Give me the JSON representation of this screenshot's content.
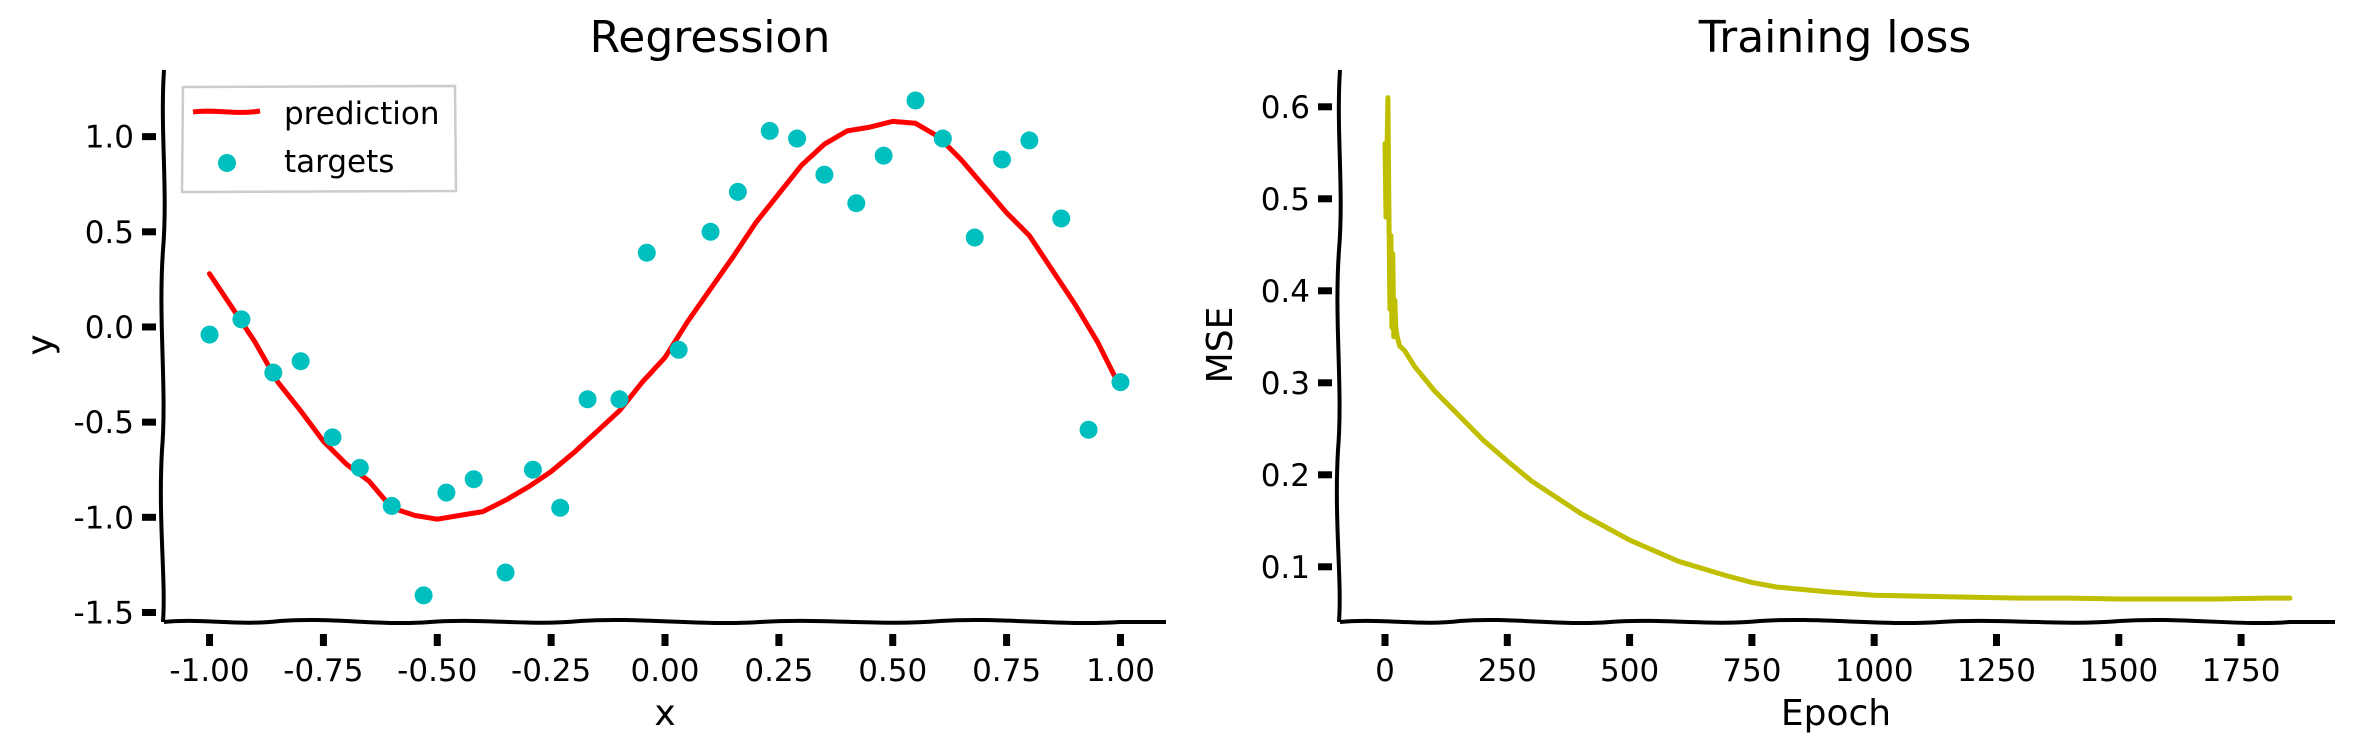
{
  "chart_data": [
    {
      "type": "scatter+line",
      "title": "Regression",
      "xlabel": "x",
      "ylabel": "y",
      "xlim": [
        -1.1,
        1.1
      ],
      "ylim": [
        -1.55,
        1.35
      ],
      "xticks": [
        -1.0,
        -0.75,
        -0.5,
        -0.25,
        0.0,
        0.25,
        0.5,
        0.75,
        1.0
      ],
      "xtick_labels": [
        "-1.00",
        "-0.75",
        "-0.50",
        "-0.25",
        "0.00",
        "0.25",
        "0.50",
        "0.75",
        "1.00"
      ],
      "yticks": [
        -1.5,
        -1.0,
        -0.5,
        0.0,
        0.5,
        1.0
      ],
      "ytick_labels": [
        "-1.5",
        "-1.0",
        "-0.5",
        "0.0",
        "0.5",
        "1.0"
      ],
      "legend": {
        "position": "top-left",
        "entries": [
          "prediction",
          "targets"
        ]
      },
      "colors": {
        "prediction": "#ff0000",
        "targets": "#00bfbf"
      },
      "series": [
        {
          "name": "prediction",
          "kind": "line",
          "x": [
            -1.0,
            -0.95,
            -0.9,
            -0.85,
            -0.8,
            -0.75,
            -0.7,
            -0.65,
            -0.6,
            -0.55,
            -0.5,
            -0.45,
            -0.4,
            -0.35,
            -0.3,
            -0.25,
            -0.2,
            -0.15,
            -0.1,
            -0.05,
            0.0,
            0.05,
            0.1,
            0.15,
            0.2,
            0.25,
            0.3,
            0.35,
            0.4,
            0.45,
            0.5,
            0.55,
            0.6,
            0.65,
            0.7,
            0.75,
            0.8,
            0.85,
            0.9,
            0.95,
            1.0
          ],
          "y": [
            0.28,
            0.1,
            -0.08,
            -0.29,
            -0.44,
            -0.6,
            -0.72,
            -0.81,
            -0.95,
            -0.99,
            -1.01,
            -0.99,
            -0.97,
            -0.91,
            -0.84,
            -0.76,
            -0.66,
            -0.55,
            -0.44,
            -0.29,
            -0.16,
            0.03,
            0.2,
            0.37,
            0.55,
            0.7,
            0.85,
            0.96,
            1.03,
            1.05,
            1.08,
            1.07,
            1.0,
            0.88,
            0.74,
            0.6,
            0.48,
            0.3,
            0.12,
            -0.08,
            -0.32
          ]
        },
        {
          "name": "targets",
          "kind": "scatter",
          "x": [
            -1.0,
            -0.93,
            -0.86,
            -0.8,
            -0.73,
            -0.67,
            -0.6,
            -0.53,
            -0.48,
            -0.42,
            -0.35,
            -0.29,
            -0.23,
            -0.17,
            -0.1,
            -0.04,
            0.03,
            0.1,
            0.16,
            0.23,
            0.29,
            0.35,
            0.42,
            0.48,
            0.55,
            0.61,
            0.68,
            0.74,
            0.8,
            0.87,
            0.93,
            1.0
          ],
          "y": [
            -0.04,
            0.04,
            -0.24,
            -0.18,
            -0.58,
            -0.74,
            -0.94,
            -1.41,
            -0.87,
            -0.8,
            -1.29,
            -0.75,
            -0.95,
            -0.38,
            -0.38,
            0.39,
            -0.12,
            0.5,
            0.71,
            1.03,
            0.99,
            0.8,
            0.65,
            0.9,
            1.19,
            0.99,
            0.47,
            0.88,
            0.98,
            0.57,
            -0.54,
            -0.29
          ]
        }
      ]
    },
    {
      "type": "line",
      "title": "Training loss",
      "xlabel": "Epoch",
      "ylabel": "MSE",
      "xlim": [
        -92,
        1942
      ],
      "ylim": [
        0.04,
        0.64
      ],
      "xticks": [
        0,
        250,
        500,
        750,
        1000,
        1250,
        1500,
        1750
      ],
      "xtick_labels": [
        "0",
        "250",
        "500",
        "750",
        "1000",
        "1250",
        "1500",
        "1750"
      ],
      "yticks": [
        0.1,
        0.2,
        0.3,
        0.4,
        0.5,
        0.6
      ],
      "ytick_labels": [
        "0.1",
        "0.2",
        "0.3",
        "0.4",
        "0.5",
        "0.6"
      ],
      "colors": {
        "loss": "#bfbf00"
      },
      "series": [
        {
          "name": "loss",
          "x": [
            0,
            2,
            4,
            6,
            8,
            10,
            12,
            14,
            16,
            18,
            20,
            22,
            25,
            30,
            40,
            60,
            100,
            150,
            200,
            250,
            300,
            400,
            500,
            600,
            700,
            750,
            800,
            900,
            1000,
            1100,
            1200,
            1300,
            1400,
            1500,
            1600,
            1700,
            1800,
            1850
          ],
          "y": [
            0.56,
            0.48,
            0.55,
            0.61,
            0.49,
            0.38,
            0.46,
            0.36,
            0.44,
            0.35,
            0.39,
            0.36,
            0.35,
            0.34,
            0.335,
            0.318,
            0.292,
            0.265,
            0.238,
            0.215,
            0.193,
            0.158,
            0.129,
            0.106,
            0.09,
            0.083,
            0.078,
            0.073,
            0.069,
            0.068,
            0.067,
            0.066,
            0.066,
            0.065,
            0.065,
            0.065,
            0.066,
            0.066
          ]
        }
      ]
    }
  ]
}
